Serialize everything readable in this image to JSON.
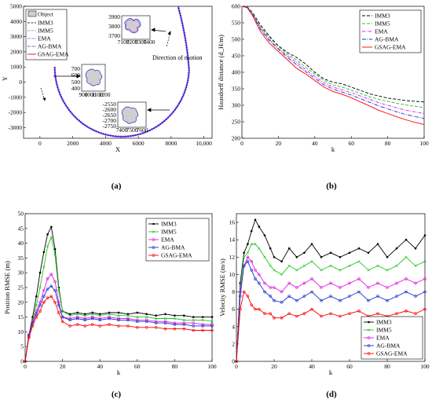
{
  "chart_data": [
    {
      "id": "a",
      "type": "line",
      "caption": "(a)",
      "xlabel": "X",
      "ylabel": "Y",
      "xlim": [
        -1000,
        10500
      ],
      "ylim": [
        -3700,
        5000
      ],
      "xticks": [
        "0",
        "2000",
        "4000",
        "6000",
        "8000",
        "10,000"
      ],
      "xtick_values": [
        0,
        2000,
        4000,
        6000,
        8000,
        10000
      ],
      "yticks": [
        "5000",
        "4000",
        "3000",
        "2000",
        "1000",
        "0",
        "-1000",
        "-2000",
        "-3000"
      ],
      "ytick_values": [
        5000,
        4000,
        3000,
        2000,
        1000,
        0,
        -1000,
        -2000,
        -3000
      ],
      "legend": [
        "Object",
        "IMM3",
        "IMM5",
        "EMA",
        "AG-BMA",
        "GSAG-EMA"
      ],
      "legend_position": "top-left",
      "annotation": "Direction of motion",
      "trajectory": {
        "start": [
          900,
          1000
        ],
        "turn_center": [
          5000,
          1000
        ],
        "turn_radius": 4100,
        "end": [
          8400,
          5100
        ]
      },
      "insets": [
        {
          "xticks": [
            "7100",
            "7200",
            "7300",
            "7400"
          ],
          "yticks": [
            "3900",
            "3800",
            "3700"
          ]
        },
        {
          "xticks": [
            "900",
            "1000",
            "1100",
            "1200"
          ],
          "yticks": [
            "700",
            "600",
            "500",
            "400"
          ]
        },
        {
          "xticks": [
            "7400",
            "7500",
            "7600"
          ],
          "yticks": [
            "-2550",
            "-2600",
            "-2650",
            "-2700",
            "-2750"
          ]
        }
      ]
    },
    {
      "id": "b",
      "type": "line",
      "caption": "(b)",
      "xlabel": "k",
      "ylabel": "Hausdorff distance (d_H/m)",
      "xlim": [
        0,
        100
      ],
      "ylim": [
        200,
        600
      ],
      "xticks": [
        "0",
        "20",
        "40",
        "60",
        "80",
        "100"
      ],
      "yticks": [
        "600",
        "550",
        "500",
        "450",
        "400",
        "350",
        "300",
        "250",
        "200"
      ],
      "legend_position": "top-right",
      "x": [
        0,
        3,
        6,
        10,
        15,
        20,
        25,
        30,
        35,
        40,
        45,
        50,
        55,
        60,
        65,
        70,
        75,
        80,
        85,
        90,
        95,
        100
      ],
      "series": [
        {
          "name": "IMM3",
          "color": "#000000",
          "dash": "4,2",
          "values": [
            600,
            598,
            580,
            545,
            510,
            480,
            460,
            445,
            425,
            400,
            380,
            370,
            365,
            355,
            345,
            335,
            328,
            322,
            318,
            314,
            312,
            310
          ]
        },
        {
          "name": "IMM5",
          "color": "#22c522",
          "dash": "4,2",
          "values": [
            600,
            597,
            578,
            540,
            505,
            478,
            455,
            437,
            415,
            395,
            375,
            362,
            355,
            346,
            336,
            326,
            318,
            312,
            306,
            301,
            297,
            293
          ]
        },
        {
          "name": "EMA",
          "color": "#e01be0",
          "dash": "4,1.5,1,1.5",
          "values": [
            600,
            596,
            576,
            536,
            500,
            472,
            450,
            430,
            408,
            388,
            368,
            355,
            347,
            338,
            328,
            318,
            308,
            300,
            292,
            285,
            280,
            275
          ]
        },
        {
          "name": "AG-BMA",
          "color": "#1a33cc",
          "dash": "5,1.5,1,1.5",
          "values": [
            600,
            596,
            574,
            532,
            496,
            470,
            445,
            423,
            402,
            382,
            362,
            349,
            340,
            331,
            320,
            309,
            298,
            289,
            280,
            272,
            266,
            260
          ]
        },
        {
          "name": "GSAG-EMA",
          "color": "#ff0000",
          "dash": "",
          "values": [
            600,
            595,
            570,
            525,
            488,
            463,
            438,
            412,
            395,
            375,
            355,
            342,
            333,
            323,
            310,
            298,
            285,
            275,
            265,
            256,
            248,
            242
          ]
        }
      ]
    },
    {
      "id": "c",
      "type": "line",
      "caption": "(c)",
      "xlabel": "k",
      "ylabel": "Position RMSE (m)",
      "xlim": [
        0,
        100
      ],
      "ylim": [
        0,
        50
      ],
      "xticks": [
        "0",
        "20",
        "40",
        "60",
        "80",
        "100"
      ],
      "yticks": [
        "50",
        "45",
        "40",
        "35",
        "30",
        "25",
        "20",
        "15",
        "10",
        "5",
        "0"
      ],
      "legend_position": "top-right",
      "x": [
        0,
        2,
        4,
        6,
        8,
        10,
        12,
        14,
        16,
        18,
        20,
        24,
        28,
        32,
        36,
        40,
        45,
        50,
        55,
        60,
        65,
        70,
        75,
        80,
        85,
        90,
        95,
        100
      ],
      "series": [
        {
          "name": "IMM3",
          "color": "#000000",
          "marker": "dot",
          "values": [
            0,
            9,
            15,
            22,
            30,
            37,
            43,
            45.5,
            38,
            25,
            17,
            16,
            16.5,
            16,
            16.5,
            16,
            16.5,
            16.5,
            16,
            16.5,
            16,
            15.5,
            16,
            15.5,
            15.5,
            15,
            15,
            15
          ]
        },
        {
          "name": "IMM5",
          "color": "#22c522",
          "marker": "x",
          "values": [
            0,
            9,
            14,
            19,
            25,
            32,
            39,
            42,
            36,
            24,
            17,
            15.5,
            16,
            15.5,
            16,
            15.5,
            16,
            15.5,
            15.5,
            15,
            15,
            14.5,
            14.5,
            14.5,
            14,
            14,
            14,
            13.5
          ]
        },
        {
          "name": "EMA",
          "color": "#e01be0",
          "marker": "o",
          "values": [
            0,
            9,
            13.5,
            17,
            20,
            24,
            28,
            29.5,
            27,
            20,
            15,
            14.5,
            15,
            14.5,
            15,
            14.5,
            15,
            14.5,
            14.5,
            14,
            14,
            13.5,
            13.5,
            13,
            13,
            13,
            12.5,
            12.5
          ]
        },
        {
          "name": "AG-BMA",
          "color": "#1a33cc",
          "marker": "o",
          "values": [
            0,
            8.5,
            13,
            16,
            19,
            22,
            24.5,
            25.5,
            24,
            19,
            15,
            14,
            14.5,
            14,
            14.5,
            14,
            14.5,
            14,
            14,
            13.5,
            13.5,
            13,
            13,
            12.5,
            12.5,
            12,
            12,
            12
          ]
        },
        {
          "name": "GSAG-EMA",
          "color": "#ff0000",
          "marker": "o",
          "values": [
            0,
            8,
            12,
            15,
            17,
            20,
            21.5,
            22,
            20,
            16.5,
            13.5,
            12,
            12.5,
            12,
            12.5,
            12,
            12.5,
            12,
            12,
            11.5,
            11.5,
            11.5,
            11,
            11,
            11,
            10.5,
            10.5,
            10.5
          ]
        }
      ]
    },
    {
      "id": "d",
      "type": "line",
      "caption": "(d)",
      "xlabel": "k",
      "ylabel": "Velocity RMSE (m/s)",
      "xlim": [
        0,
        100
      ],
      "ylim": [
        0,
        17
      ],
      "xticks": [
        "0",
        "20",
        "40",
        "60",
        "80",
        "100"
      ],
      "yticks": [
        "16",
        "14",
        "12",
        "10",
        "8",
        "6",
        "4",
        "2",
        "0"
      ],
      "legend_position": "bottom-right",
      "x": [
        0,
        2,
        4,
        6,
        8,
        10,
        12,
        15,
        18,
        20,
        24,
        28,
        32,
        36,
        40,
        45,
        50,
        55,
        60,
        65,
        70,
        75,
        80,
        85,
        90,
        95,
        100
      ],
      "series": [
        {
          "name": "IMM3",
          "color": "#000000",
          "marker": "dot",
          "values": [
            0,
            9,
            12.5,
            13.5,
            15,
            16.3,
            15.5,
            14.5,
            13,
            12,
            11.5,
            13,
            12,
            12.5,
            13.5,
            12,
            12.5,
            12,
            12.5,
            13,
            12.5,
            13.5,
            12,
            13,
            14,
            13,
            14.5
          ]
        },
        {
          "name": "IMM5",
          "color": "#22c522",
          "marker": "x",
          "values": [
            0,
            8.5,
            12,
            12.5,
            13.5,
            13.5,
            13,
            12,
            11,
            10.5,
            10,
            11,
            10.5,
            11,
            11.5,
            10.5,
            11,
            10.5,
            11,
            11.5,
            10.5,
            11,
            10.5,
            11,
            12,
            11,
            11.5
          ]
        },
        {
          "name": "EMA",
          "color": "#e01be0",
          "marker": "o",
          "values": [
            0,
            8,
            11,
            12,
            11.5,
            10.5,
            10,
            9,
            8.5,
            8.5,
            8,
            9,
            8.5,
            9,
            9.5,
            8.5,
            9,
            8.5,
            9,
            9.5,
            8.5,
            9,
            8.5,
            9,
            9.5,
            9,
            9.5
          ]
        },
        {
          "name": "AG-BMA",
          "color": "#1a33cc",
          "marker": "o",
          "values": [
            0,
            7.5,
            11,
            11.5,
            10.5,
            9.5,
            9,
            8,
            7.5,
            7,
            6.8,
            7.5,
            7,
            7.5,
            8,
            7,
            7.5,
            7,
            7.5,
            8,
            7,
            7.5,
            7,
            7.5,
            8,
            7.5,
            8
          ]
        },
        {
          "name": "GSAG-EMA",
          "color": "#ff0000",
          "marker": "o",
          "values": [
            0,
            6,
            8,
            7.5,
            6.5,
            6,
            6,
            5.5,
            5.5,
            5,
            5,
            5.5,
            5.2,
            5.5,
            6,
            5.2,
            5.5,
            5.2,
            5.5,
            5.8,
            5.2,
            5.5,
            5.2,
            5.5,
            5.8,
            5.5,
            6
          ]
        }
      ]
    }
  ]
}
